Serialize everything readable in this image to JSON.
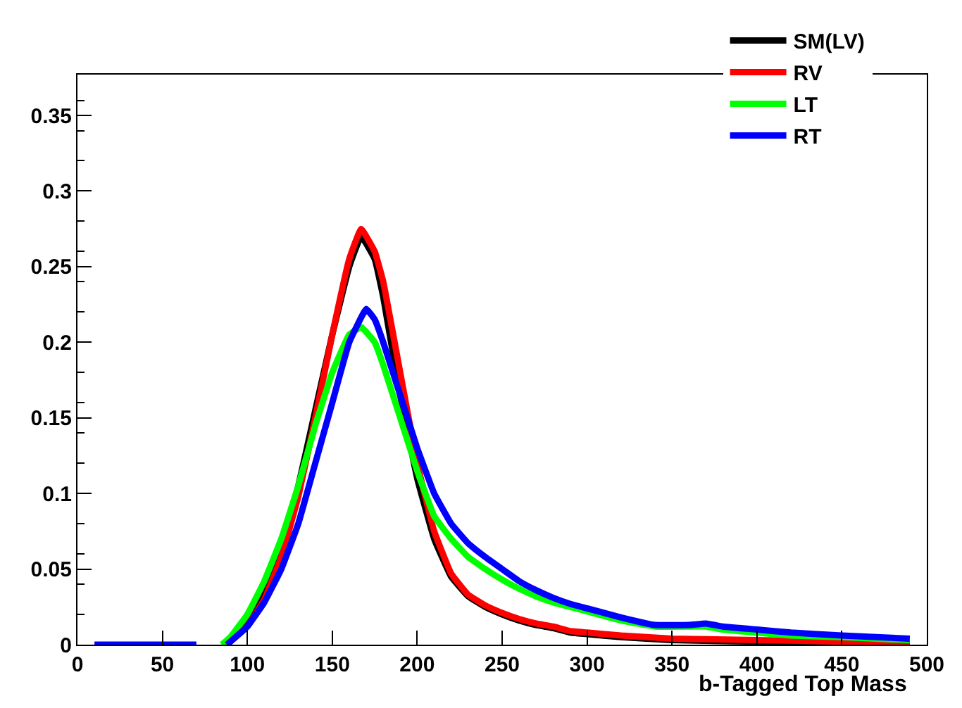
{
  "chart_data": {
    "type": "line",
    "xlabel": "b-Tagged Top Mass",
    "xlim": [
      0,
      500
    ],
    "xticks": [
      0,
      50,
      100,
      150,
      200,
      250,
      300,
      350,
      400,
      450,
      500
    ],
    "ylim": [
      0,
      0.377
    ],
    "yticks": [
      0,
      0.05,
      0.1,
      0.15,
      0.2,
      0.25,
      0.3,
      0.35
    ],
    "legend": "top right",
    "marker": "none",
    "line_style": "solid",
    "series": [
      {
        "name": "SM(LV)",
        "color": "#000000",
        "x": [
          85,
          90,
          100,
          110,
          120,
          130,
          140,
          150,
          160,
          167,
          175,
          180,
          190,
          200,
          210,
          220,
          230,
          240,
          250,
          260,
          270,
          280,
          290,
          300,
          320,
          350,
          400,
          450,
          490
        ],
        "values": [
          0,
          0.003,
          0.015,
          0.035,
          0.065,
          0.105,
          0.155,
          0.205,
          0.25,
          0.27,
          0.255,
          0.23,
          0.165,
          0.11,
          0.07,
          0.045,
          0.032,
          0.025,
          0.02,
          0.016,
          0.013,
          0.011,
          0.008,
          0.007,
          0.005,
          0.003,
          0.002,
          0.001,
          0
        ]
      },
      {
        "name": "RV",
        "color": "#ff0000",
        "x": [
          87,
          90,
          100,
          110,
          120,
          130,
          140,
          150,
          160,
          167,
          175,
          180,
          190,
          200,
          210,
          220,
          230,
          240,
          250,
          260,
          270,
          280,
          290,
          300,
          320,
          350,
          400,
          450,
          490
        ],
        "values": [
          0,
          0.002,
          0.012,
          0.03,
          0.058,
          0.098,
          0.15,
          0.205,
          0.255,
          0.275,
          0.26,
          0.24,
          0.18,
          0.12,
          0.075,
          0.047,
          0.033,
          0.026,
          0.021,
          0.017,
          0.014,
          0.012,
          0.009,
          0.008,
          0.006,
          0.004,
          0.003,
          0.002,
          0.001
        ]
      },
      {
        "name": "LT",
        "color": "#00ff00",
        "x": [
          85,
          90,
          100,
          110,
          120,
          130,
          140,
          150,
          160,
          167,
          175,
          180,
          190,
          200,
          210,
          220,
          230,
          240,
          250,
          260,
          270,
          280,
          290,
          300,
          320,
          340,
          360,
          370,
          380,
          400,
          420,
          450,
          490
        ],
        "values": [
          0,
          0.005,
          0.02,
          0.042,
          0.07,
          0.105,
          0.145,
          0.18,
          0.205,
          0.21,
          0.2,
          0.185,
          0.15,
          0.115,
          0.085,
          0.07,
          0.058,
          0.05,
          0.043,
          0.037,
          0.032,
          0.028,
          0.025,
          0.022,
          0.016,
          0.012,
          0.012,
          0.012,
          0.01,
          0.008,
          0.006,
          0.005,
          0.003
        ]
      },
      {
        "name": "RT",
        "color": "#0000ff",
        "x": [
          10,
          20,
          30,
          40,
          50,
          60,
          70,
          80,
          88,
          90,
          100,
          110,
          120,
          130,
          140,
          150,
          160,
          170,
          175,
          180,
          190,
          200,
          210,
          220,
          230,
          240,
          250,
          260,
          270,
          280,
          290,
          300,
          320,
          340,
          360,
          370,
          380,
          400,
          420,
          450,
          490
        ],
        "values": [
          0,
          0,
          0,
          0,
          0,
          0,
          0,
          null,
          0,
          0.002,
          0.012,
          0.028,
          0.05,
          0.08,
          0.12,
          0.16,
          0.2,
          0.222,
          0.215,
          0.2,
          0.165,
          0.13,
          0.1,
          0.08,
          0.067,
          0.058,
          0.05,
          0.042,
          0.036,
          0.031,
          0.027,
          0.024,
          0.018,
          0.013,
          0.013,
          0.014,
          0.012,
          0.01,
          0.008,
          0.006,
          0.004
        ]
      }
    ]
  }
}
